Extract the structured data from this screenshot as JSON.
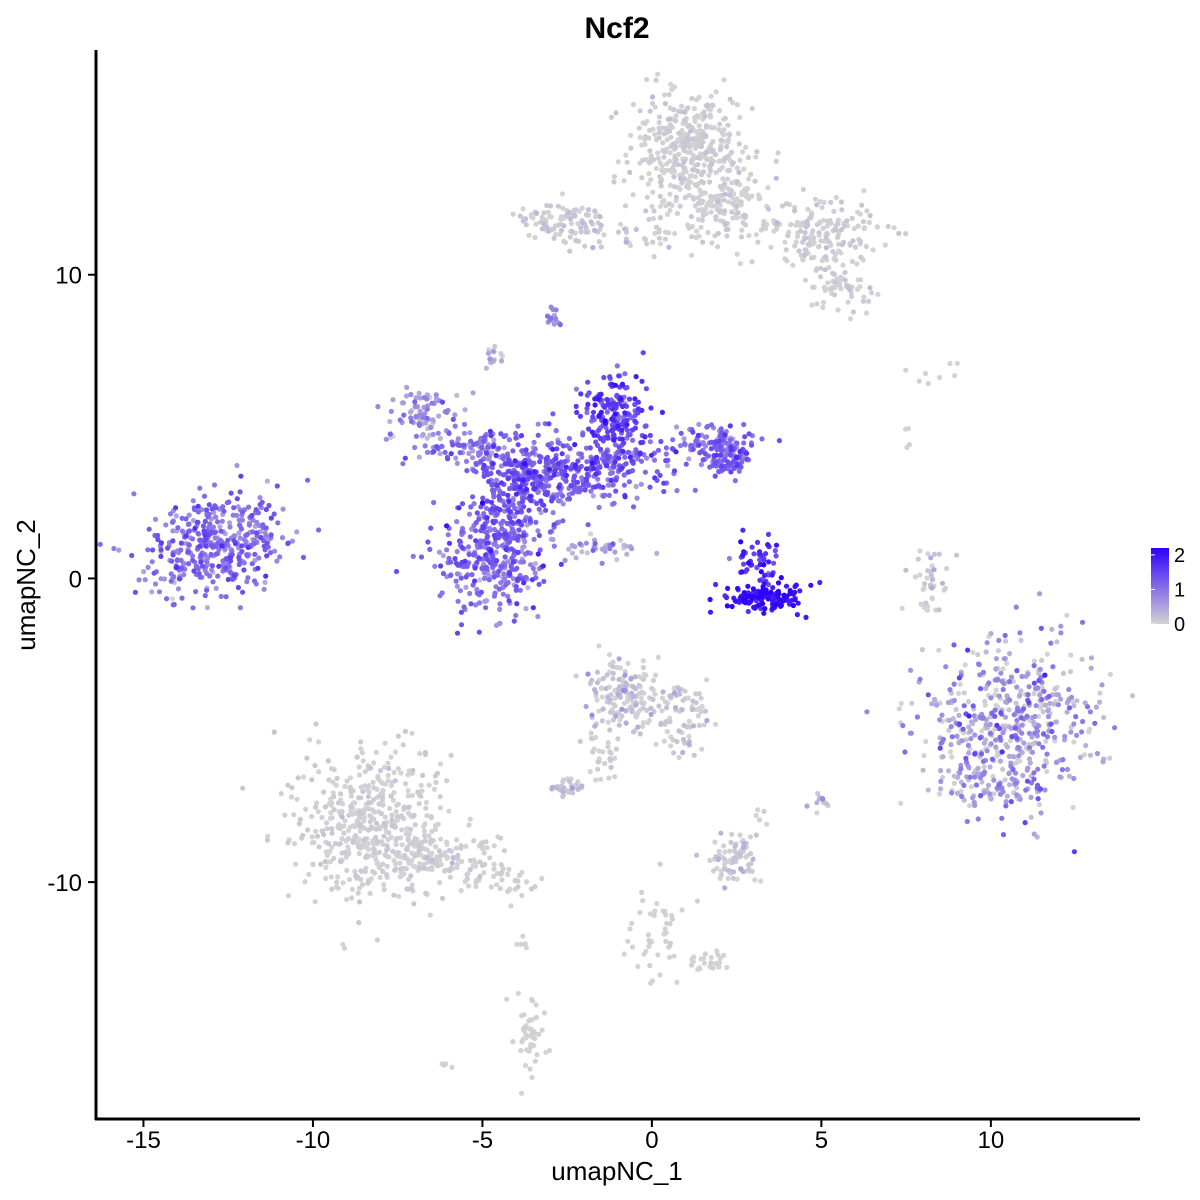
{
  "chart_data": {
    "type": "scatter",
    "title": "Ncf2",
    "xlabel": "umapNC_1",
    "ylabel": "umapNC_2",
    "xlim": [
      -16.4,
      14.4
    ],
    "ylim": [
      -17.8,
      17.4
    ],
    "x_ticks": [
      -15,
      -10,
      -5,
      0,
      5,
      10
    ],
    "x_tick_labels": [
      "-15",
      "-10",
      "-5",
      "0",
      "5",
      "10"
    ],
    "y_ticks": [
      -10,
      0,
      10
    ],
    "y_tick_labels": [
      "-10",
      "0",
      "10"
    ],
    "grid": false,
    "legend": {
      "placement": "right",
      "type": "colorbar",
      "min": 0,
      "max": 2.2,
      "ticks": [
        0,
        1,
        2
      ],
      "tick_labels": [
        "0",
        "1",
        "2"
      ]
    },
    "colors": {
      "low": "#D3D3D3",
      "high": "#2E00FF"
    },
    "note_on_points": "Thousands of cells; represented by cluster summaries below. Each cluster lists its center (data units), spread, approximate cell count, and typical expression level.",
    "clusters": [
      {
        "cx": -12.9,
        "cy": 1.1,
        "sx": 1.1,
        "sy": 0.8,
        "rot": 20,
        "n": 420,
        "expr_mean": 1.0,
        "expr_sd": 0.3
      },
      {
        "cx": 1.1,
        "cy": 14.2,
        "sx": 0.9,
        "sy": 1.0,
        "rot": 0,
        "n": 340,
        "expr_mean": 0.02,
        "expr_sd": 0.08
      },
      {
        "cx": 1.9,
        "cy": 12.5,
        "sx": 0.9,
        "sy": 0.8,
        "rot": 0,
        "n": 180,
        "expr_mean": 0.02,
        "expr_sd": 0.08
      },
      {
        "cx": 4.9,
        "cy": 11.4,
        "sx": 0.9,
        "sy": 0.55,
        "rot": 0,
        "n": 170,
        "expr_mean": 0.03,
        "expr_sd": 0.1
      },
      {
        "cx": 5.6,
        "cy": 9.6,
        "sx": 0.5,
        "sy": 0.35,
        "rot": 0,
        "n": 60,
        "expr_mean": 0.03,
        "expr_sd": 0.1
      },
      {
        "cx": -2.7,
        "cy": 11.8,
        "sx": 0.7,
        "sy": 0.3,
        "rot": 0,
        "n": 90,
        "expr_mean": 0.05,
        "expr_sd": 0.12
      },
      {
        "cx": -1.0,
        "cy": 11.3,
        "sx": 1.2,
        "sy": 0.2,
        "rot": 0,
        "n": 40,
        "expr_mean": 0.05,
        "expr_sd": 0.12
      },
      {
        "cx": -2.9,
        "cy": 8.6,
        "sx": 0.12,
        "sy": 0.2,
        "rot": 0,
        "n": 15,
        "expr_mean": 0.8,
        "expr_sd": 0.2
      },
      {
        "cx": -4.7,
        "cy": 7.3,
        "sx": 0.15,
        "sy": 0.2,
        "rot": 0,
        "n": 15,
        "expr_mean": 0.2,
        "expr_sd": 0.2
      },
      {
        "cx": -6.7,
        "cy": 5.4,
        "sx": 0.6,
        "sy": 0.5,
        "rot": 0,
        "n": 90,
        "expr_mean": 0.6,
        "expr_sd": 0.3
      },
      {
        "cx": -5.2,
        "cy": 4.3,
        "sx": 0.8,
        "sy": 0.3,
        "rot": 0,
        "n": 100,
        "expr_mean": 0.9,
        "expr_sd": 0.3
      },
      {
        "cx": -3.3,
        "cy": 3.3,
        "sx": 0.9,
        "sy": 0.7,
        "rot": 0,
        "n": 320,
        "expr_mean": 1.2,
        "expr_sd": 0.3
      },
      {
        "cx": -4.8,
        "cy": 0.6,
        "sx": 0.8,
        "sy": 0.8,
        "rot": 0,
        "n": 300,
        "expr_mean": 1.0,
        "expr_sd": 0.3
      },
      {
        "cx": -4.3,
        "cy": 2.0,
        "sx": 0.5,
        "sy": 0.9,
        "rot": 0,
        "n": 120,
        "expr_mean": 1.2,
        "expr_sd": 0.3
      },
      {
        "cx": -1.0,
        "cy": 5.3,
        "sx": 0.5,
        "sy": 0.7,
        "rot": 0,
        "n": 200,
        "expr_mean": 1.4,
        "expr_sd": 0.3
      },
      {
        "cx": -1.2,
        "cy": 3.6,
        "sx": 0.9,
        "sy": 0.5,
        "rot": 0,
        "n": 160,
        "expr_mean": 1.1,
        "expr_sd": 0.3
      },
      {
        "cx": 1.8,
        "cy": 4.4,
        "sx": 0.6,
        "sy": 0.4,
        "rot": 0,
        "n": 120,
        "expr_mean": 1.0,
        "expr_sd": 0.3
      },
      {
        "cx": 2.3,
        "cy": 3.9,
        "sx": 0.3,
        "sy": 0.3,
        "rot": 0,
        "n": 60,
        "expr_mean": 1.2,
        "expr_sd": 0.3
      },
      {
        "cx": -1.7,
        "cy": 1.0,
        "sx": 0.6,
        "sy": 0.2,
        "rot": 0,
        "n": 40,
        "expr_mean": 0.6,
        "expr_sd": 0.3
      },
      {
        "cx": 3.4,
        "cy": -0.6,
        "sx": 0.6,
        "sy": 0.25,
        "rot": 0,
        "n": 130,
        "expr_mean": 2.0,
        "expr_sd": 0.2
      },
      {
        "cx": 3.1,
        "cy": 0.6,
        "sx": 0.3,
        "sy": 0.4,
        "rot": 0,
        "n": 50,
        "expr_mean": 1.7,
        "expr_sd": 0.3
      },
      {
        "cx": 10.5,
        "cy": -4.8,
        "sx": 1.3,
        "sy": 1.3,
        "rot": 0,
        "n": 520,
        "expr_mean": 0.5,
        "expr_sd": 0.5
      },
      {
        "cx": -8.3,
        "cy": -8.1,
        "sx": 1.1,
        "sy": 1.3,
        "rot": 0,
        "n": 480,
        "expr_mean": 0.02,
        "expr_sd": 0.08
      },
      {
        "cx": -6.2,
        "cy": -9.2,
        "sx": 1.0,
        "sy": 0.4,
        "rot": 0,
        "n": 120,
        "expr_mean": 0.02,
        "expr_sd": 0.08
      },
      {
        "cx": -4.5,
        "cy": -10.0,
        "sx": 0.6,
        "sy": 0.3,
        "rot": 0,
        "n": 40,
        "expr_mean": 0.01,
        "expr_sd": 0.05
      },
      {
        "cx": -0.8,
        "cy": -3.8,
        "sx": 0.5,
        "sy": 0.6,
        "rot": 0,
        "n": 150,
        "expr_mean": 0.08,
        "expr_sd": 0.2
      },
      {
        "cx": 0.8,
        "cy": -4.5,
        "sx": 0.5,
        "sy": 0.6,
        "rot": 0,
        "n": 80,
        "expr_mean": 0.05,
        "expr_sd": 0.15
      },
      {
        "cx": -1.5,
        "cy": -5.8,
        "sx": 0.3,
        "sy": 0.5,
        "rot": 0,
        "n": 30,
        "expr_mean": 0.02,
        "expr_sd": 0.05
      },
      {
        "cx": -2.5,
        "cy": -6.9,
        "sx": 0.3,
        "sy": 0.15,
        "rot": 0,
        "n": 35,
        "expr_mean": 0.1,
        "expr_sd": 0.2
      },
      {
        "cx": 2.4,
        "cy": -9.2,
        "sx": 0.35,
        "sy": 0.4,
        "rot": 0,
        "n": 80,
        "expr_mean": 0.05,
        "expr_sd": 0.15
      },
      {
        "cx": 0.1,
        "cy": -11.5,
        "sx": 0.4,
        "sy": 0.8,
        "rot": 0,
        "n": 45,
        "expr_mean": 0.0,
        "expr_sd": 0.03
      },
      {
        "cx": 1.7,
        "cy": -12.6,
        "sx": 0.3,
        "sy": 0.15,
        "rot": 0,
        "n": 25,
        "expr_mean": 0.0,
        "expr_sd": 0.03
      },
      {
        "cx": -3.6,
        "cy": -15.0,
        "sx": 0.25,
        "sy": 0.6,
        "rot": 0,
        "n": 50,
        "expr_mean": 0.0,
        "expr_sd": 0.03
      },
      {
        "cx": 8.2,
        "cy": -0.2,
        "sx": 0.25,
        "sy": 0.5,
        "rot": 0,
        "n": 40,
        "expr_mean": 0.1,
        "expr_sd": 0.2
      },
      {
        "cx": 10.0,
        "cy": -6.9,
        "sx": 0.8,
        "sy": 0.25,
        "rot": 0,
        "n": 60,
        "expr_mean": 0.5,
        "expr_sd": 0.5
      },
      {
        "cx": 5.0,
        "cy": -7.4,
        "sx": 0.15,
        "sy": 0.2,
        "rot": 0,
        "n": 12,
        "expr_mean": 0.4,
        "expr_sd": 0.3
      },
      {
        "cx": 8.5,
        "cy": 6.7,
        "sx": 0.5,
        "sy": 0.2,
        "rot": 0,
        "n": 8,
        "expr_mean": 0.0,
        "expr_sd": 0.03
      },
      {
        "cx": 7.5,
        "cy": 4.7,
        "sx": 0.1,
        "sy": 0.2,
        "rot": 0,
        "n": 4,
        "expr_mean": 0.0,
        "expr_sd": 0.03
      },
      {
        "cx": -3.8,
        "cy": -12.0,
        "sx": 0.1,
        "sy": 0.2,
        "rot": 0,
        "n": 5,
        "expr_mean": 0.0,
        "expr_sd": 0.03
      },
      {
        "cx": -6.1,
        "cy": -16.0,
        "sx": 0.1,
        "sy": 0.1,
        "rot": 0,
        "n": 4,
        "expr_mean": 0.0,
        "expr_sd": 0.03
      },
      {
        "cx": 3.2,
        "cy": -7.9,
        "sx": 0.1,
        "sy": 0.2,
        "rot": 0,
        "n": 5,
        "expr_mean": 0.0,
        "expr_sd": 0.03
      }
    ]
  }
}
